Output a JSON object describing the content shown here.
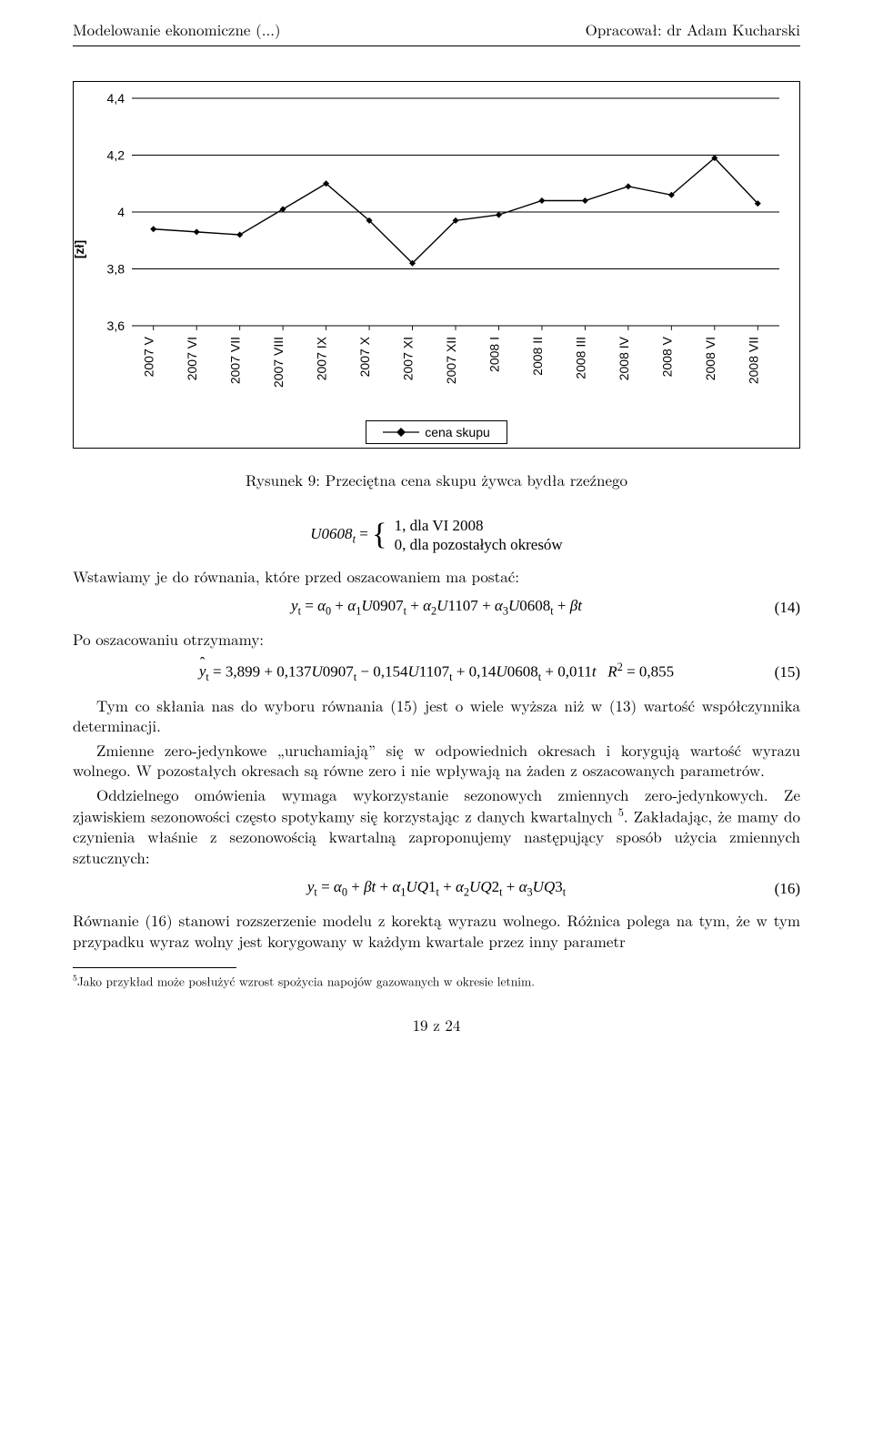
{
  "header": {
    "left": "Modelowanie ekonomiczne (...)",
    "right": "Opracował: dr Adam Kucharski"
  },
  "chart": {
    "type": "line",
    "yaxis_label": "[zł]",
    "x_labels": [
      "2007 V",
      "2007 VI",
      "2007 VII",
      "2007 VIII",
      "2007 IX",
      "2007 X",
      "2007 XI",
      "2007 XII",
      "2008 I",
      "2008 II",
      "2008 III",
      "2008 IV",
      "2008 V",
      "2008 VI",
      "2008 VII"
    ],
    "y_values": [
      3.94,
      3.93,
      3.92,
      4.01,
      4.1,
      3.97,
      3.82,
      3.97,
      3.99,
      4.04,
      4.04,
      4.09,
      4.06,
      4.19,
      4.03
    ],
    "ylim": [
      3.6,
      4.4
    ],
    "yticks": [
      3.6,
      3.8,
      4,
      4.2,
      4.4
    ],
    "ytick_labels": [
      "3,6",
      "3,8",
      "4",
      "4,2",
      "4,4"
    ],
    "gridline_color": "#000000",
    "line_color": "#000000",
    "marker_shape": "diamond",
    "marker_size": 7,
    "marker_color": "#000000",
    "background_color": "#ffffff",
    "axis_font_family": "Arial",
    "axis_font_size": 14,
    "legend_label": "cena skupu"
  },
  "figure_caption": "Rysunek 9: Przeciętna cena skupu żywca bydła rzeźnego",
  "body": {
    "u0608_lhs": "U0608",
    "u0608_sub": "t",
    "piece1": "1,   dla VI 2008",
    "piece2": "0,   dla pozostałych okresów",
    "p1": "Wstawiamy je do równania, które przed oszacowaniem ma postać:",
    "eq14": "yₜ = α₀ + α₁U0907ₜ + α₂U1107 + α₃U0608ₜ + βt",
    "eq14_num": "(14)",
    "p2": "Po oszacowaniu otrzymamy:",
    "eq15_lhs": "ŷₜ = 3,899 + 0,137U0907ₜ − 0,154U1107ₜ + 0,14U0608ₜ + 0,011t    R² = 0,855",
    "eq15_num": "(15)",
    "p3": "Tym co skłania nas do wyboru równania (15) jest o wiele wyższa niż w (13) wartość współczynnika determinacji.",
    "p4": "Zmienne zero-jedynkowe „uruchamiają” się w odpowiednich okresach i korygują wartość wyrazu wolnego. W pozostałych okresach są równe zero i nie wpływają na żaden z oszacowanych parametrów.",
    "p5a": "Oddzielnego omówienia wymaga wykorzystanie sezonowych zmiennych zero-jedynkowych. Ze zjawiskiem sezonowości często spotykamy się korzystając z danych kwartalnych ",
    "p5_fn": "5",
    "p5b": ". Zakładając, że mamy do czynienia właśnie z sezonowością kwartalną zaproponujemy następujący sposób użycia zmiennych sztucznych:",
    "eq16": "yₜ = α₀ + βt + α₁UQ1ₜ + α₂UQ2ₜ + α₃UQ3ₜ",
    "eq16_num": "(16)",
    "p6": "Równanie (16) stanowi rozszerzenie modelu z korektą wyrazu wolnego. Różnica polega na tym, że w tym przypadku wyraz wolny jest korygowany w każdym kwartale przez inny parametr"
  },
  "footnote": {
    "num": "5",
    "text": "Jako przykład może posłużyć wzrost spożycia napojów gazowanych w okresie letnim."
  },
  "page_number": "19 z 24"
}
